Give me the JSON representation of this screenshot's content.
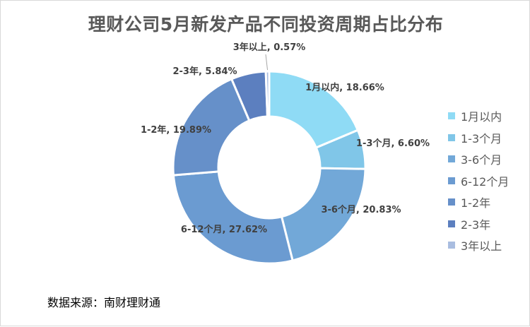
{
  "chart_data": {
    "type": "pie",
    "variant": "donut",
    "title": "理财公司5月新发产品不同投资周期占比分布",
    "categories": [
      "1月以内",
      "1-3个月",
      "3-6个月",
      "6-12个月",
      "1-2年",
      "2-3年",
      "3年以上"
    ],
    "values": [
      18.66,
      6.6,
      20.83,
      27.62,
      19.89,
      5.84,
      0.57
    ],
    "unit": "%",
    "data_labels": [
      "1月以内, 18.66%",
      "1-3个月, 6.60%",
      "3-6个月, 20.83%",
      "6-12个月, 27.62%",
      "1-2年, 19.89%",
      "2-3年, 5.84%",
      "3年以上, 0.57%"
    ],
    "colors": [
      "#8fdbf5",
      "#80c6e8",
      "#72a8d8",
      "#6b9bd1",
      "#6690c9",
      "#5c7fbf",
      "#a9bde0"
    ],
    "legend_position": "right",
    "grid": false
  },
  "source": "数据来源：南财理财通"
}
